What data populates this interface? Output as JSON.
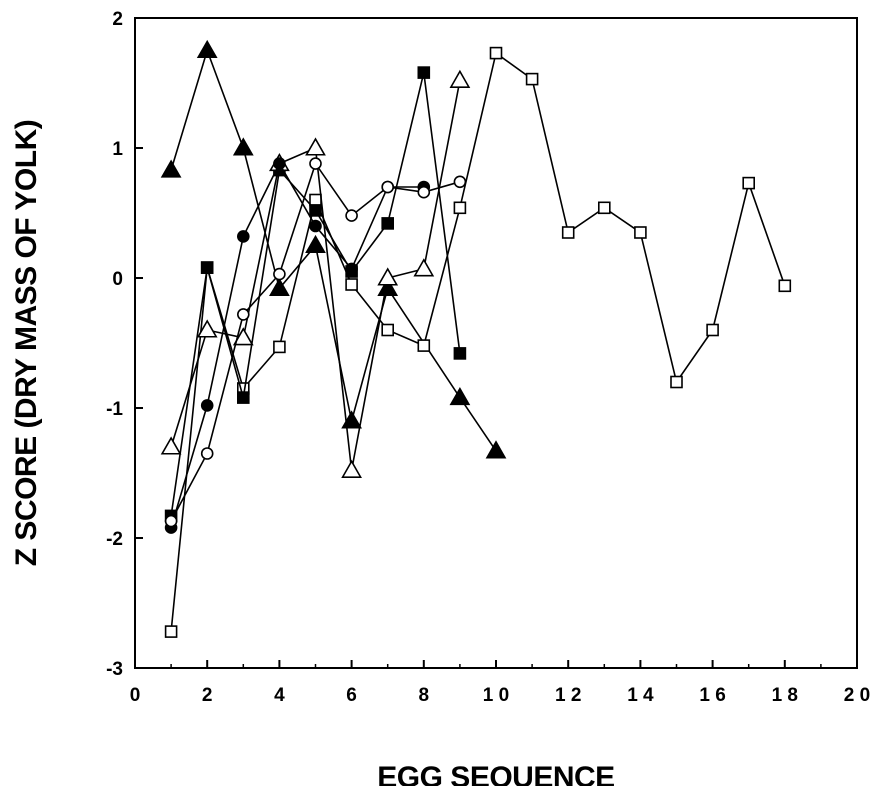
{
  "chart_data": {
    "type": "line",
    "xlabel": "EGG SEQUENCE",
    "ylabel": "Z SCORE (DRY MASS OF YOLK)",
    "xlim": [
      0,
      20
    ],
    "ylim": [
      -3,
      2
    ],
    "xticks": [
      0,
      2,
      4,
      6,
      8,
      10,
      12,
      14,
      16,
      18,
      20
    ],
    "xtick_labels": [
      "0",
      "2",
      "4",
      "6",
      "8",
      "1 0",
      "1 2",
      "1 4",
      "1 6",
      "1 8",
      "2 0"
    ],
    "yticks": [
      -3,
      -2,
      -1,
      0,
      1,
      2
    ],
    "ytick_labels": [
      "-3",
      "-2",
      "-1",
      "0",
      "1",
      "2"
    ],
    "grid": false,
    "legend": "none",
    "series": [
      {
        "marker": "filled-triangle",
        "x": [
          1,
          2,
          3,
          4,
          5,
          6,
          7,
          9,
          10
        ],
        "y": [
          0.83,
          1.75,
          1.0,
          -0.08,
          0.25,
          -1.1,
          -0.08,
          -0.92,
          -1.33
        ]
      },
      {
        "marker": "open-square",
        "x": [
          1,
          2,
          3,
          4,
          5,
          6,
          7,
          8,
          9,
          10,
          11,
          12,
          13,
          14,
          15,
          16,
          17,
          18
        ],
        "y": [
          -2.72,
          0.08,
          -0.85,
          -0.53,
          0.6,
          -0.05,
          -0.4,
          -0.52,
          0.54,
          1.73,
          1.53,
          0.35,
          0.54,
          0.35,
          -0.8,
          -0.4,
          0.73,
          -0.06
        ]
      },
      {
        "marker": "filled-square",
        "x": [
          1,
          2,
          3,
          4,
          5,
          6,
          7,
          8,
          9
        ],
        "y": [
          -1.83,
          0.08,
          -0.92,
          0.83,
          0.52,
          0.05,
          0.42,
          1.58,
          -0.58
        ]
      },
      {
        "marker": "open-triangle",
        "x": [
          1,
          2,
          3,
          4,
          5,
          6,
          7,
          8,
          9
        ],
        "y": [
          -1.3,
          -0.4,
          -0.46,
          0.88,
          1.0,
          -1.48,
          0.0,
          0.07,
          1.52
        ]
      },
      {
        "marker": "filled-circle",
        "x": [
          1,
          2,
          3,
          4,
          5,
          6,
          7,
          8
        ],
        "y": [
          -1.92,
          -0.98,
          0.32,
          0.88,
          0.4,
          0.07,
          0.7,
          0.7
        ]
      },
      {
        "marker": "open-circle",
        "x": [
          1,
          2,
          3,
          4,
          5,
          6,
          7,
          8,
          9
        ],
        "y": [
          -1.87,
          -1.35,
          -0.28,
          0.03,
          0.88,
          0.48,
          0.7,
          0.66,
          0.74
        ]
      }
    ]
  }
}
